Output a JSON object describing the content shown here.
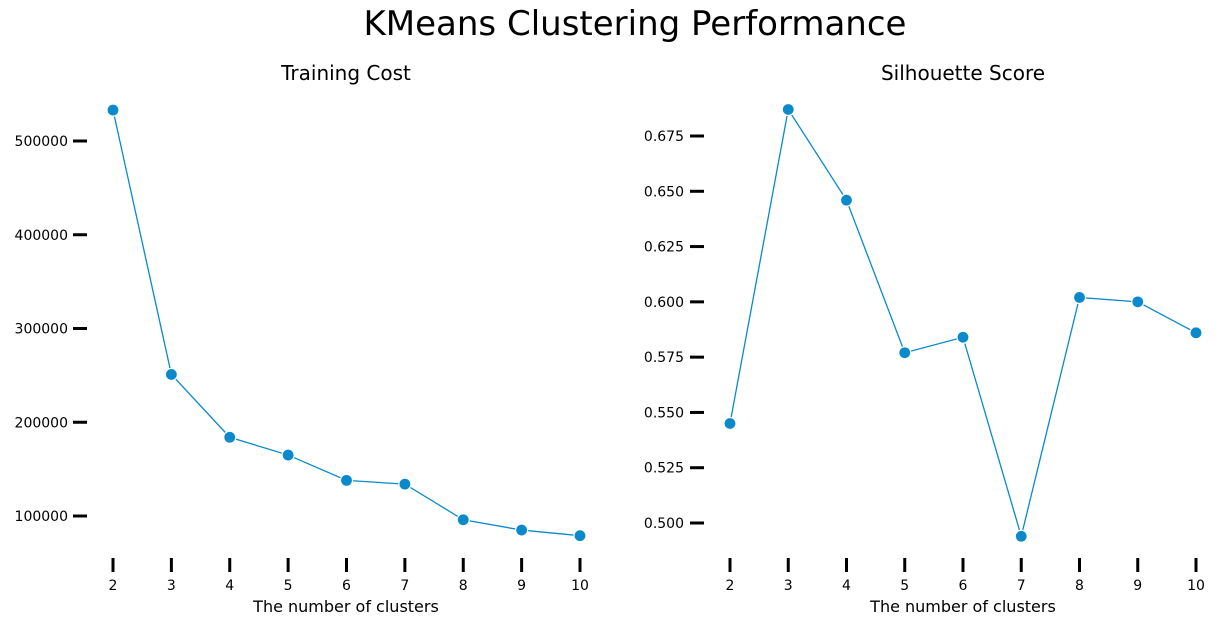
{
  "suptitle": "KMeans Clustering Performance",
  "colors": {
    "line": "#0a8acb",
    "marker": "#0a8acb",
    "marker_edge": "#ffffff",
    "tick": "#000000"
  },
  "chart_data": [
    {
      "type": "line",
      "title": "Training Cost",
      "xlabel": "The number of clusters",
      "ylabel": "",
      "x": [
        2,
        3,
        4,
        5,
        6,
        7,
        8,
        9,
        10
      ],
      "series": [
        {
          "values": [
            533000,
            251000,
            184000,
            165000,
            138000,
            134000,
            96000,
            85000,
            79000
          ]
        }
      ],
      "xticks": [
        2,
        3,
        4,
        5,
        6,
        7,
        8,
        9,
        10
      ],
      "yticks": [
        100000,
        200000,
        300000,
        400000,
        500000
      ],
      "ytick_labels": [
        "100000",
        "200000",
        "300000",
        "400000",
        "500000"
      ],
      "grid": false
    },
    {
      "type": "line",
      "title": "Silhouette Score",
      "xlabel": "The number of clusters",
      "ylabel": "",
      "x": [
        2,
        3,
        4,
        5,
        6,
        7,
        8,
        9,
        10
      ],
      "series": [
        {
          "values": [
            0.545,
            0.687,
            0.646,
            0.577,
            0.584,
            0.494,
            0.602,
            0.6,
            0.586
          ]
        }
      ],
      "xticks": [
        2,
        3,
        4,
        5,
        6,
        7,
        8,
        9,
        10
      ],
      "yticks": [
        0.5,
        0.525,
        0.55,
        0.575,
        0.6,
        0.625,
        0.65,
        0.675
      ],
      "ytick_labels": [
        "0.500",
        "0.525",
        "0.550",
        "0.575",
        "0.600",
        "0.625",
        "0.650",
        "0.675"
      ],
      "grid": false
    }
  ]
}
